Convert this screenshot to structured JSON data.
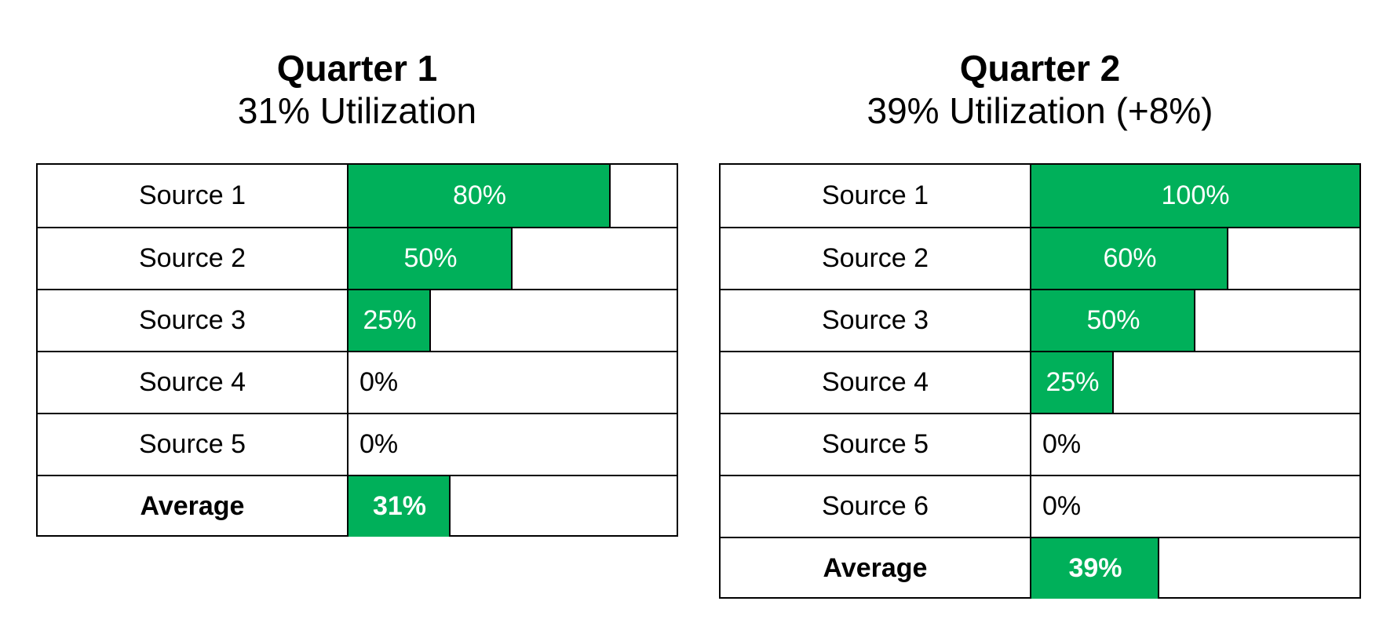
{
  "chart_data": [
    {
      "type": "bar",
      "title": "Quarter 1",
      "subtitle": "31% Utilization",
      "categories": [
        "Source 1",
        "Source 2",
        "Source 3",
        "Source 4",
        "Source 5",
        "Average"
      ],
      "values": [
        80,
        50,
        25,
        0,
        0,
        31
      ],
      "value_labels": [
        "80%",
        "50%",
        "25%",
        "0%",
        "0%",
        "31%"
      ],
      "ylim": [
        0,
        100
      ],
      "orientation": "horizontal",
      "legend": "none",
      "grid": false
    },
    {
      "type": "bar",
      "title": "Quarter 2",
      "subtitle": "39% Utilization (+8%)",
      "categories": [
        "Source 1",
        "Source 2",
        "Source 3",
        "Source 4",
        "Source 5",
        "Source 6",
        "Average"
      ],
      "values": [
        100,
        60,
        50,
        25,
        0,
        0,
        39
      ],
      "value_labels": [
        "100%",
        "60%",
        "50%",
        "25%",
        "0%",
        "0%",
        "39%"
      ],
      "ylim": [
        0,
        100
      ],
      "orientation": "horizontal",
      "legend": "none",
      "grid": false
    }
  ],
  "colors": {
    "bar": "#00b05a",
    "bar_text": "#ffffff",
    "border": "#000000"
  }
}
